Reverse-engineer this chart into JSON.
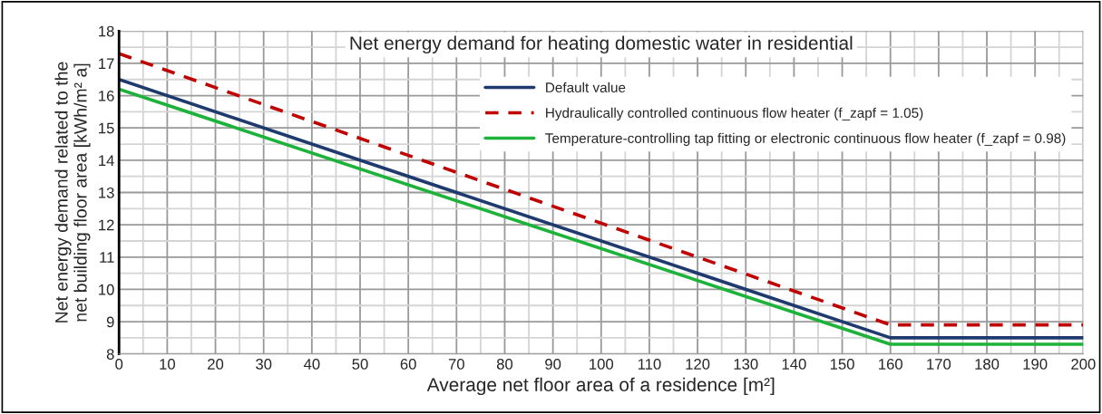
{
  "chart_data": {
    "type": "line",
    "title": "Net energy demand for heating domestic water in residential",
    "xlabel": "Average net floor area of a residence [m²]",
    "ylabel": "Net energy demand related to the\nnet building floor area [kWh/m² a]",
    "x": [
      0,
      160,
      200
    ],
    "series": [
      {
        "name": "Default value",
        "color": "#1f3a6e",
        "line_style": "solid",
        "values": [
          16.5,
          8.5,
          8.5
        ]
      },
      {
        "name": "Hydraulically controlled continuous flow heater (f_zapf = 1.05)",
        "color": "#c00000",
        "line_style": "dashed",
        "values": [
          17.3,
          8.9,
          8.9
        ]
      },
      {
        "name": "Temperature-controlling tap fitting or electronic continuous flow heater (f_zapf = 0.98)",
        "color": "#1db33a",
        "line_style": "solid",
        "values": [
          16.2,
          8.3,
          8.3
        ]
      }
    ],
    "xlim": [
      0,
      200
    ],
    "xticks": [
      0,
      {
        "value": 5,
        "label": null
      },
      10,
      {
        "value": 15,
        "label": null
      },
      20,
      {
        "value": 25,
        "label": null
      },
      30,
      {
        "value": 35,
        "label": null
      },
      40,
      {
        "value": 45,
        "label": null
      },
      50,
      {
        "value": 55,
        "label": null
      },
      60,
      {
        "value": 65,
        "label": null
      },
      70,
      {
        "value": 75,
        "label": null
      },
      80,
      {
        "value": 85,
        "label": null
      },
      90,
      {
        "value": 95,
        "label": null
      },
      100,
      {
        "value": 105,
        "label": null
      },
      110,
      {
        "value": 115,
        "label": null
      },
      120,
      {
        "value": 125,
        "label": null
      },
      130,
      {
        "value": 135,
        "label": null
      },
      140,
      {
        "value": 145,
        "label": null
      },
      150,
      {
        "value": 155,
        "label": null
      },
      160,
      {
        "value": 165,
        "label": null
      },
      170,
      {
        "value": 175,
        "label": null
      },
      180,
      {
        "value": 185,
        "label": null
      },
      190,
      {
        "value": 195,
        "label": null
      },
      200
    ],
    "ylim": [
      8,
      18
    ],
    "yticks": [
      8,
      {
        "value": 8.5,
        "label": null
      },
      9,
      {
        "value": 9.5,
        "label": null
      },
      10,
      {
        "value": 10.5,
        "label": null
      },
      11,
      {
        "value": 11.5,
        "label": null
      },
      12,
      {
        "value": 12.5,
        "label": null
      },
      13,
      {
        "value": 13.5,
        "label": null
      },
      14,
      {
        "value": 14.5,
        "label": null
      },
      15,
      {
        "value": 15.5,
        "label": null
      },
      16,
      {
        "value": 16.5,
        "label": null
      },
      17,
      {
        "value": 17.5,
        "label": null
      },
      18
    ],
    "grid": true,
    "legend": "top right",
    "marker": "none"
  }
}
